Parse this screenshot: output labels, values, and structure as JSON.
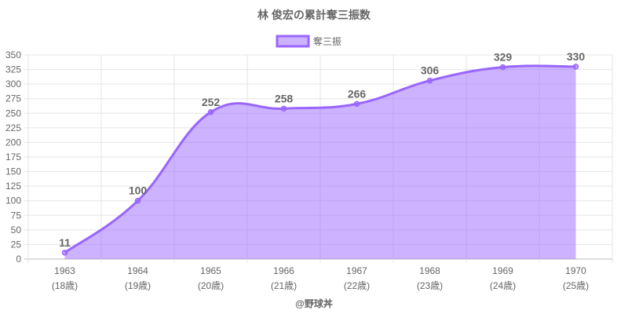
{
  "chart_data": {
    "type": "line",
    "title": "林 俊宏の累計奪三振数",
    "categories": [
      "1963",
      "1964",
      "1965",
      "1966",
      "1967",
      "1968",
      "1969",
      "1970"
    ],
    "sublabels": [
      "(18歳)",
      "(19歳)",
      "(20歳)",
      "(21歳)",
      "(22歳)",
      "(23歳)",
      "(24歳)",
      "(25歳)"
    ],
    "series": [
      {
        "name": "奪三振",
        "values": [
          11,
          100,
          252,
          258,
          266,
          306,
          329,
          330
        ]
      }
    ],
    "ylim": [
      0,
      350
    ],
    "ystep": 25,
    "grid": true,
    "legend": "top",
    "filled": true,
    "data_labels": true,
    "colors": {
      "line": "#9966ff",
      "fill": "rgba(153,102,255,0.5)",
      "text": "#666666",
      "grid": "#e5e5e5"
    }
  },
  "footer": "@野球丼"
}
